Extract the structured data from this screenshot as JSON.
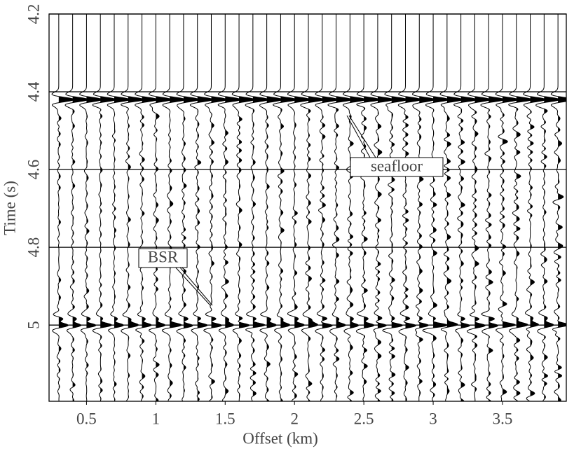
{
  "chart_data": {
    "type": "wiggle",
    "xlabel": "Offset (km)",
    "ylabel": "Time (s)",
    "xlim": [
      0.23,
      3.96
    ],
    "ylim": [
      4.2,
      5.196
    ],
    "xticks": [
      0.5,
      1,
      1.5,
      2,
      2.5,
      3,
      3.5
    ],
    "yticks": [
      4.2,
      4.4,
      4.6,
      4.8,
      5
    ],
    "grid": true,
    "color": "#000000",
    "offsets": [
      0.3,
      0.4,
      0.5,
      0.6,
      0.7,
      0.8,
      0.9,
      1.0,
      1.1,
      1.2,
      1.3,
      1.4,
      1.5,
      1.6,
      1.7,
      1.8,
      1.9,
      2.0,
      2.1,
      2.2,
      2.3,
      2.4,
      2.5,
      2.6,
      2.7,
      2.8,
      2.9,
      3.0,
      3.1,
      3.2,
      3.3,
      3.4,
      3.5,
      3.6,
      3.7,
      3.8,
      3.9
    ],
    "events": [
      {
        "time": 4.42
      },
      {
        "time": 4.985
      },
      {
        "time": 5.0
      }
    ],
    "annotations": [
      "seafloor",
      "BSR"
    ]
  }
}
